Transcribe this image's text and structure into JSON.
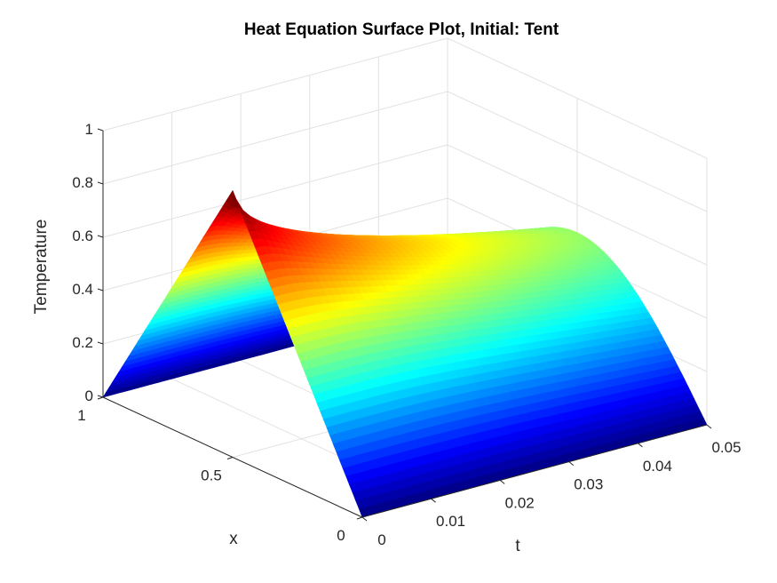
{
  "chart_data": {
    "type": "surface",
    "title": "Heat Equation Surface Plot, Initial: Tent",
    "xlabel": "t",
    "ylabel": "x",
    "zlabel": "Temperature",
    "t_range": [
      0,
      0.05
    ],
    "x_range": [
      0,
      1
    ],
    "z_range": [
      0,
      1
    ],
    "t_ticks": [
      "0",
      "0.01",
      "0.02",
      "0.03",
      "0.04",
      "0.05"
    ],
    "x_ticks": [
      "0",
      "0.5",
      "1"
    ],
    "z_ticks": [
      "0",
      "0.2",
      "0.4",
      "0.6",
      "0.8",
      "1"
    ],
    "colormap": "jet",
    "grid": true,
    "initial_condition": "tent",
    "series": [
      {
        "t": 0,
        "x": [
          0,
          0.25,
          0.5,
          0.75,
          1
        ],
        "temperature": [
          0,
          0.5,
          1,
          0.5,
          0
        ]
      },
      {
        "t": 0.01,
        "x": [
          0,
          0.25,
          0.5,
          0.75,
          1
        ],
        "temperature": [
          0,
          0.46,
          0.75,
          0.46,
          0
        ]
      },
      {
        "t": 0.02,
        "x": [
          0,
          0.25,
          0.5,
          0.75,
          1
        ],
        "temperature": [
          0,
          0.42,
          0.64,
          0.42,
          0
        ]
      },
      {
        "t": 0.03,
        "x": [
          0,
          0.25,
          0.5,
          0.75,
          1
        ],
        "temperature": [
          0,
          0.39,
          0.56,
          0.39,
          0
        ]
      },
      {
        "t": 0.04,
        "x": [
          0,
          0.25,
          0.5,
          0.75,
          1
        ],
        "temperature": [
          0,
          0.36,
          0.51,
          0.36,
          0
        ]
      },
      {
        "t": 0.05,
        "x": [
          0,
          0.25,
          0.5,
          0.75,
          1
        ],
        "temperature": [
          0,
          0.33,
          0.46,
          0.33,
          0
        ]
      }
    ]
  }
}
